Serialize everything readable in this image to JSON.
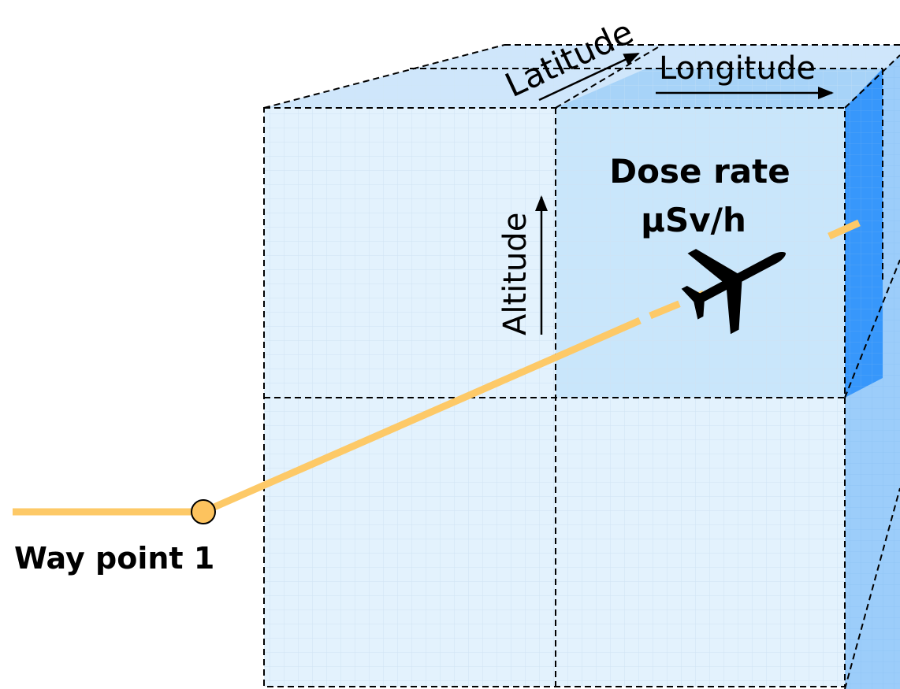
{
  "labels": {
    "latitude": "Latitude",
    "longitude": "Longitude",
    "altitude": "Altitude",
    "dose_rate_line1": "Dose rate",
    "dose_rate_line2": "μSv/h",
    "waypoint": "Way point 1"
  },
  "icons": {
    "aircraft": "airplane-icon",
    "waypoint_marker": "circle-marker-icon"
  },
  "colors": {
    "cube_face": "#e3f2fd",
    "highlight_cell": "#c9e6fb",
    "top_face": "#cfe6fb",
    "top_highlight": "#a7d3f8",
    "side_face": "#9ccdfa",
    "side_highlight": "#3797fb",
    "grid_line": "#cfe3f3",
    "flight_path": "#fdc967",
    "waypoint_fill": "#fdc35e",
    "dashed_edge": "#000000"
  }
}
